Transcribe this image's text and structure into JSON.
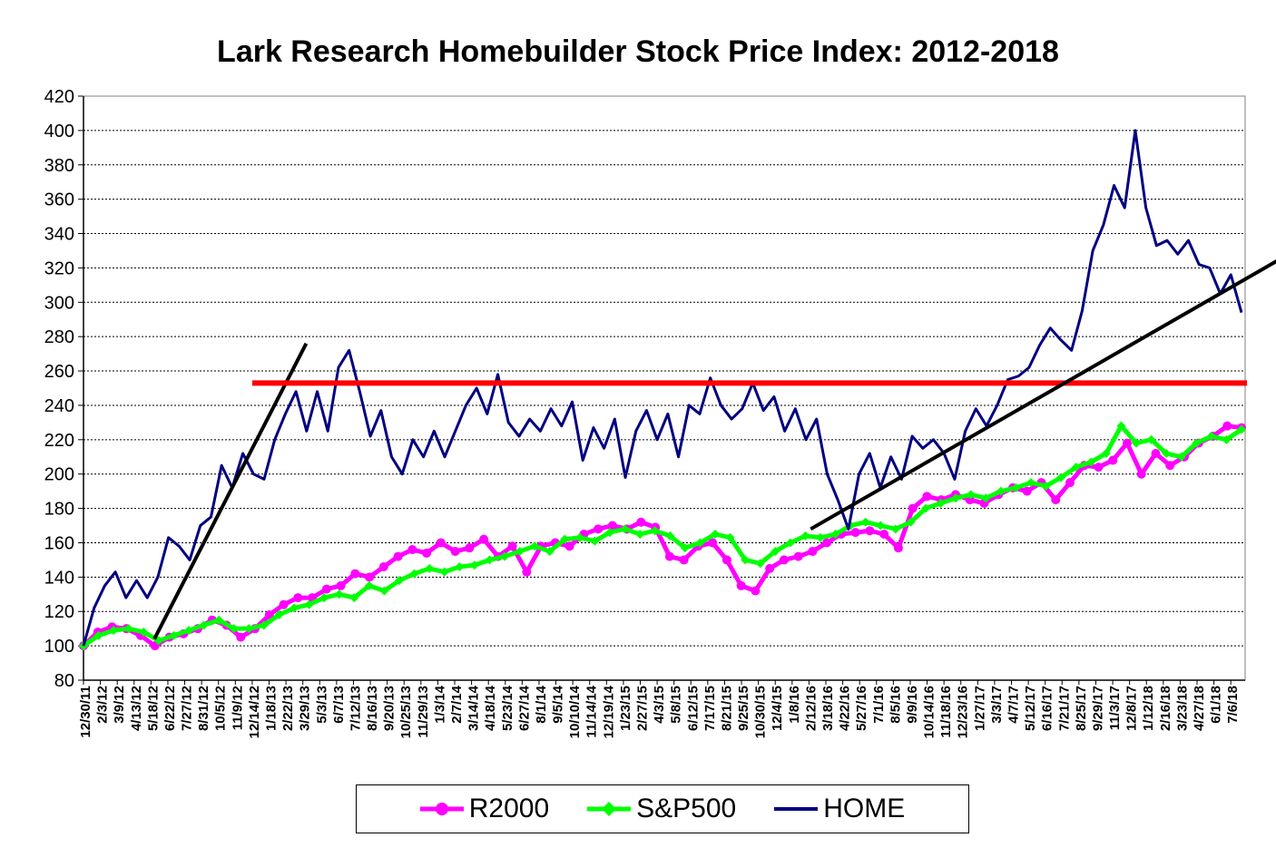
{
  "chart_data": {
    "type": "line",
    "title": "Lark Research Homebuilder Stock Price Index: 2012-2018",
    "xlabel": "",
    "ylabel": "",
    "ylim": [
      80,
      420
    ],
    "ytick_step": 20,
    "grid": "horizontal dashed",
    "legend_position": "bottom",
    "x_tick_labels": [
      "12/30/11",
      "2/3/12",
      "3/9/12",
      "4/13/12",
      "5/18/12",
      "6/22/12",
      "7/27/12",
      "8/31/12",
      "10/5/12",
      "11/9/12",
      "12/14/12",
      "1/18/13",
      "2/22/13",
      "3/29/13",
      "5/3/13",
      "6/7/13",
      "7/12/13",
      "8/16/13",
      "9/20/13",
      "10/25/13",
      "11/29/13",
      "1/3/14",
      "2/7/14",
      "3/14/14",
      "4/18/14",
      "5/23/14",
      "6/27/14",
      "8/1/14",
      "9/5/14",
      "10/10/14",
      "11/14/14",
      "12/19/14",
      "1/23/15",
      "2/27/15",
      "4/3/15",
      "5/8/15",
      "6/12/15",
      "7/17/15",
      "8/21/15",
      "9/25/15",
      "10/30/15",
      "12/4/15",
      "1/8/16",
      "2/12/16",
      "3/18/16",
      "4/22/16",
      "5/27/16",
      "7/1/16",
      "8/5/16",
      "9/9/16",
      "10/14/16",
      "11/18/16",
      "12/23/16",
      "1/27/17",
      "3/3/17",
      "4/7/17",
      "5/12/17",
      "6/16/17",
      "7/21/17",
      "8/25/17",
      "9/29/17",
      "11/3/17",
      "12/8/17",
      "1/12/18",
      "2/16/18",
      "3/23/18",
      "4/27/18",
      "6/1/18",
      "7/6/18"
    ],
    "series": [
      {
        "name": "R2000",
        "color": "#FF00FF",
        "marker": "circle",
        "values": [
          [
            0,
            100
          ],
          [
            1,
            108
          ],
          [
            2,
            111
          ],
          [
            3,
            110
          ],
          [
            4,
            106
          ],
          [
            5,
            100
          ],
          [
            6,
            105
          ],
          [
            7,
            107
          ],
          [
            8,
            110
          ],
          [
            9,
            115
          ],
          [
            10,
            112
          ],
          [
            11,
            105
          ],
          [
            12,
            110
          ],
          [
            13,
            118
          ],
          [
            14,
            124
          ],
          [
            15,
            128
          ],
          [
            16,
            128
          ],
          [
            17,
            133
          ],
          [
            18,
            135
          ],
          [
            19,
            142
          ],
          [
            20,
            140
          ],
          [
            21,
            146
          ],
          [
            22,
            152
          ],
          [
            23,
            156
          ],
          [
            24,
            154
          ],
          [
            25,
            160
          ],
          [
            26,
            155
          ],
          [
            27,
            157
          ],
          [
            28,
            162
          ],
          [
            29,
            152
          ],
          [
            30,
            158
          ],
          [
            31,
            143
          ],
          [
            32,
            158
          ],
          [
            33,
            160
          ],
          [
            34,
            158
          ],
          [
            35,
            165
          ],
          [
            36,
            168
          ],
          [
            37,
            170
          ],
          [
            38,
            168
          ],
          [
            39,
            172
          ],
          [
            40,
            169
          ],
          [
            41,
            152
          ],
          [
            42,
            150
          ],
          [
            43,
            158
          ],
          [
            44,
            160
          ],
          [
            45,
            150
          ],
          [
            46,
            135
          ],
          [
            47,
            132
          ],
          [
            48,
            145
          ],
          [
            49,
            150
          ],
          [
            50,
            152
          ],
          [
            51,
            155
          ],
          [
            52,
            160
          ],
          [
            53,
            165
          ],
          [
            54,
            166
          ],
          [
            55,
            167
          ],
          [
            56,
            165
          ],
          [
            57,
            157
          ],
          [
            58,
            180
          ],
          [
            59,
            187
          ],
          [
            60,
            185
          ],
          [
            61,
            188
          ],
          [
            62,
            185
          ],
          [
            63,
            183
          ],
          [
            64,
            188
          ],
          [
            65,
            192
          ],
          [
            66,
            190
          ],
          [
            67,
            195
          ],
          [
            68,
            185
          ],
          [
            69,
            195
          ],
          [
            70,
            205
          ],
          [
            71,
            204
          ],
          [
            72,
            208
          ],
          [
            73,
            218
          ],
          [
            74,
            200
          ],
          [
            75,
            212
          ],
          [
            76,
            205
          ],
          [
            77,
            210
          ],
          [
            78,
            218
          ],
          [
            79,
            222
          ],
          [
            80,
            228
          ],
          [
            81,
            227
          ]
        ],
        "x_note": "x is index of approx. weekly step scaled to x_tick_labels"
      },
      {
        "name": "S&P500",
        "color": "#00FF00",
        "marker": "diamond",
        "values": [
          [
            0,
            100
          ],
          [
            1,
            106
          ],
          [
            2,
            109
          ],
          [
            3,
            110
          ],
          [
            4,
            108
          ],
          [
            5,
            103
          ],
          [
            6,
            106
          ],
          [
            7,
            109
          ],
          [
            8,
            112
          ],
          [
            9,
            115
          ],
          [
            10,
            110
          ],
          [
            11,
            110
          ],
          [
            12,
            112
          ],
          [
            13,
            118
          ],
          [
            14,
            122
          ],
          [
            15,
            124
          ],
          [
            16,
            128
          ],
          [
            17,
            130
          ],
          [
            18,
            128
          ],
          [
            19,
            135
          ],
          [
            20,
            132
          ],
          [
            21,
            138
          ],
          [
            22,
            142
          ],
          [
            23,
            145
          ],
          [
            24,
            143
          ],
          [
            25,
            146
          ],
          [
            26,
            147
          ],
          [
            27,
            150
          ],
          [
            28,
            152
          ],
          [
            29,
            155
          ],
          [
            30,
            158
          ],
          [
            31,
            155
          ],
          [
            32,
            162
          ],
          [
            33,
            163
          ],
          [
            34,
            161
          ],
          [
            35,
            166
          ],
          [
            36,
            168
          ],
          [
            37,
            165
          ],
          [
            38,
            167
          ],
          [
            39,
            164
          ],
          [
            40,
            157
          ],
          [
            41,
            160
          ],
          [
            42,
            165
          ],
          [
            43,
            163
          ],
          [
            44,
            150
          ],
          [
            45,
            148
          ],
          [
            46,
            155
          ],
          [
            47,
            160
          ],
          [
            48,
            164
          ],
          [
            49,
            163
          ],
          [
            50,
            165
          ],
          [
            51,
            170
          ],
          [
            52,
            172
          ],
          [
            53,
            170
          ],
          [
            54,
            168
          ],
          [
            55,
            172
          ],
          [
            56,
            180
          ],
          [
            57,
            183
          ],
          [
            58,
            186
          ],
          [
            59,
            188
          ],
          [
            60,
            186
          ],
          [
            61,
            190
          ],
          [
            62,
            192
          ],
          [
            63,
            195
          ],
          [
            64,
            193
          ],
          [
            65,
            198
          ],
          [
            66,
            204
          ],
          [
            67,
            207
          ],
          [
            68,
            212
          ],
          [
            69,
            228
          ],
          [
            70,
            218
          ],
          [
            71,
            220
          ],
          [
            72,
            212
          ],
          [
            73,
            210
          ],
          [
            74,
            218
          ],
          [
            75,
            222
          ],
          [
            76,
            220
          ],
          [
            77,
            226
          ]
        ]
      },
      {
        "name": "HOME",
        "color": "#000080",
        "marker": "none",
        "values": [
          [
            0,
            100
          ],
          [
            1,
            122
          ],
          [
            2,
            135
          ],
          [
            3,
            143
          ],
          [
            4,
            128
          ],
          [
            5,
            138
          ],
          [
            6,
            128
          ],
          [
            7,
            140
          ],
          [
            8,
            163
          ],
          [
            9,
            158
          ],
          [
            10,
            150
          ],
          [
            11,
            170
          ],
          [
            12,
            175
          ],
          [
            13,
            205
          ],
          [
            14,
            192
          ],
          [
            15,
            212
          ],
          [
            16,
            200
          ],
          [
            17,
            197
          ],
          [
            18,
            220
          ],
          [
            19,
            235
          ],
          [
            20,
            248
          ],
          [
            21,
            225
          ],
          [
            22,
            248
          ],
          [
            23,
            225
          ],
          [
            24,
            262
          ],
          [
            25,
            272
          ],
          [
            26,
            248
          ],
          [
            27,
            222
          ],
          [
            28,
            237
          ],
          [
            29,
            210
          ],
          [
            30,
            200
          ],
          [
            31,
            220
          ],
          [
            32,
            210
          ],
          [
            33,
            225
          ],
          [
            34,
            210
          ],
          [
            35,
            225
          ],
          [
            36,
            240
          ],
          [
            37,
            250
          ],
          [
            38,
            235
          ],
          [
            39,
            258
          ],
          [
            40,
            230
          ],
          [
            41,
            222
          ],
          [
            42,
            232
          ],
          [
            43,
            225
          ],
          [
            44,
            238
          ],
          [
            45,
            228
          ],
          [
            46,
            242
          ],
          [
            47,
            208
          ],
          [
            48,
            227
          ],
          [
            49,
            215
          ],
          [
            50,
            232
          ],
          [
            51,
            198
          ],
          [
            52,
            225
          ],
          [
            53,
            237
          ],
          [
            54,
            220
          ],
          [
            55,
            235
          ],
          [
            56,
            210
          ],
          [
            57,
            240
          ],
          [
            58,
            235
          ],
          [
            59,
            256
          ],
          [
            60,
            240
          ],
          [
            61,
            232
          ],
          [
            62,
            238
          ],
          [
            63,
            253
          ],
          [
            64,
            237
          ],
          [
            65,
            245
          ],
          [
            66,
            225
          ],
          [
            67,
            238
          ],
          [
            68,
            220
          ],
          [
            69,
            232
          ],
          [
            70,
            200
          ],
          [
            71,
            185
          ],
          [
            72,
            168
          ],
          [
            73,
            200
          ],
          [
            74,
            212
          ],
          [
            75,
            192
          ],
          [
            76,
            210
          ],
          [
            77,
            197
          ],
          [
            78,
            222
          ],
          [
            79,
            215
          ],
          [
            80,
            220
          ],
          [
            81,
            212
          ],
          [
            82,
            197
          ],
          [
            83,
            225
          ],
          [
            84,
            238
          ],
          [
            85,
            228
          ],
          [
            86,
            240
          ],
          [
            87,
            255
          ],
          [
            88,
            257
          ],
          [
            89,
            262
          ],
          [
            90,
            275
          ],
          [
            91,
            285
          ],
          [
            92,
            278
          ],
          [
            93,
            272
          ],
          [
            94,
            295
          ],
          [
            95,
            330
          ],
          [
            96,
            345
          ],
          [
            97,
            368
          ],
          [
            98,
            355
          ],
          [
            99,
            400
          ],
          [
            100,
            355
          ],
          [
            101,
            333
          ],
          [
            102,
            336
          ],
          [
            103,
            328
          ],
          [
            104,
            336
          ],
          [
            105,
            322
          ],
          [
            106,
            320
          ],
          [
            107,
            305
          ],
          [
            108,
            316
          ],
          [
            109,
            294
          ]
        ]
      }
    ],
    "annotations": [
      {
        "type": "trendline",
        "color": "#000000",
        "from": [
          4.2,
          104
        ],
        "to": [
          13.2,
          276
        ]
      },
      {
        "type": "hline",
        "color": "#FF0000",
        "y": 253,
        "x_from_label": "12/14/12",
        "x_to_end": true
      },
      {
        "type": "trendline",
        "color": "#000000",
        "from": [
          43.1,
          168
        ],
        "to": [
          70.9,
          325
        ]
      }
    ]
  },
  "legend": {
    "items": [
      {
        "label": "R2000",
        "color": "#FF00FF",
        "marker": "circle"
      },
      {
        "label": "S&P500",
        "color": "#00FF00",
        "marker": "diamond"
      },
      {
        "label": "HOME",
        "color": "#000080",
        "marker": "none"
      }
    ]
  }
}
